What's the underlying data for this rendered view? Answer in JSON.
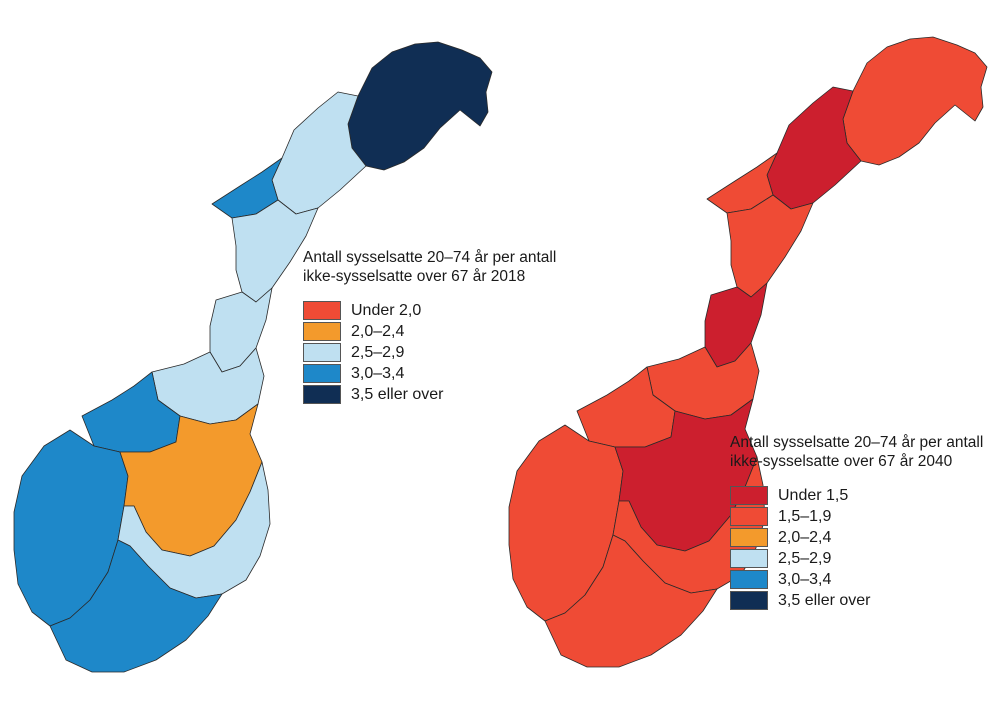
{
  "colors": {
    "c2018": [
      "#ef4b35",
      "#f39a2c",
      "#bfe0f1",
      "#1e88c9",
      "#102e54"
    ],
    "c2040": [
      "#cc1f2e",
      "#ef4b35",
      "#f39a2c",
      "#bfe0f1",
      "#1e88c9",
      "#102e54"
    ],
    "border": "#2a2a2a"
  },
  "maps": [
    {
      "name": "2018",
      "legend_title": [
        "Antall sysselsatte 20–74 år per antall",
        "ikke-sysselsatte over 67 år 2018"
      ],
      "classes": [
        "Under 2,0",
        "2,0–2,4",
        "2,5–2,9",
        "3,0–3,4",
        "3,5 eller over"
      ],
      "regions": {
        "finnmark": 4,
        "troms": 2,
        "lofoten": 3,
        "nordland": 2,
        "helgeland": 2,
        "trondelag": 2,
        "more": 3,
        "vestland": 3,
        "innlandet": 1,
        "ostlandet": 2,
        "sorlandet": 3
      }
    },
    {
      "name": "2040",
      "legend_title": [
        "Antall sysselsatte 20–74 år per antall",
        "ikke-sysselsatte over 67 år 2040"
      ],
      "classes": [
        "Under 1,5",
        "1,5–1,9",
        "2,0–2,4",
        "2,5–2,9",
        "3,0–3,4",
        "3,5 eller over"
      ],
      "regions": {
        "finnmark": 1,
        "troms": 0,
        "lofoten": 1,
        "nordland": 1,
        "helgeland": 0,
        "trondelag": 1,
        "more": 1,
        "vestland": 1,
        "innlandet": 0,
        "ostlandet": 1,
        "sorlandet": 1
      }
    }
  ]
}
